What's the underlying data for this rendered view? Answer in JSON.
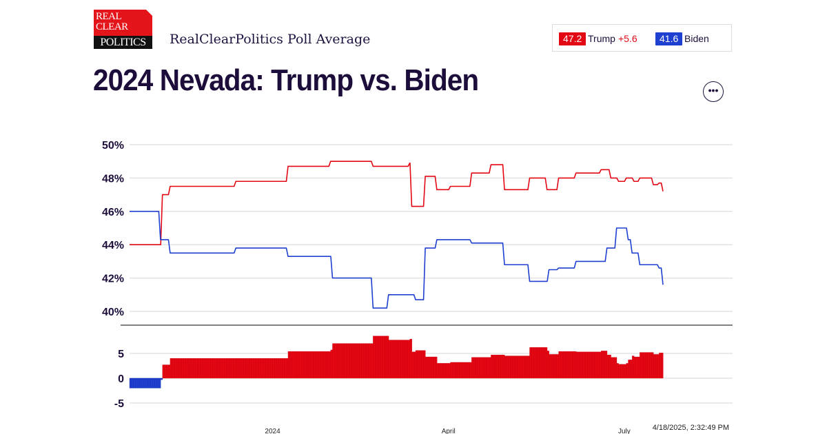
{
  "header": {
    "logo_lines": [
      "REAL",
      "CLEAR",
      "POLITICS"
    ],
    "subtitle": "RealClearPolitics Poll Average",
    "title": "2024 Nevada: Trump vs. Biden",
    "more_icon": "ellipsis-icon"
  },
  "legend": {
    "trump_value": "47.2",
    "trump_label": "Trump",
    "trump_spread": "+5.6",
    "biden_value": "41.6",
    "biden_label": "Biden"
  },
  "timestamp": "4/18/2025, 2:32:49 PM",
  "colors": {
    "trump": "#e30613",
    "biden": "#1e3fd0",
    "text": "#1c0d3a"
  },
  "chart_data": [
    {
      "type": "line",
      "xlim": [
        "2023-10-19",
        "2024-07-21"
      ],
      "ylim": [
        40,
        50
      ],
      "yticks": [
        {
          "v": 50,
          "label": "50%"
        },
        {
          "v": 48,
          "label": "48%"
        },
        {
          "v": 46,
          "label": "46%"
        },
        {
          "v": 44,
          "label": "44%"
        },
        {
          "v": 42,
          "label": "42%"
        },
        {
          "v": 40,
          "label": "40%"
        }
      ],
      "xticks": [
        {
          "d": "2024-01-01",
          "label": "2024"
        },
        {
          "d": "2024-04-01",
          "label": "April"
        },
        {
          "d": "2024-07-01",
          "label": "July"
        }
      ],
      "grid": true,
      "series": [
        {
          "name": "Trump",
          "color": "#e30613",
          "points": [
            [
              "2023-10-19",
              44.0
            ],
            [
              "2023-11-03",
              44.0
            ],
            [
              "2023-11-05",
              47.0
            ],
            [
              "2023-11-09",
              47.5
            ],
            [
              "2023-12-13",
              47.8
            ],
            [
              "2024-01-09",
              48.7
            ],
            [
              "2024-01-31",
              49.0
            ],
            [
              "2024-02-22",
              48.7
            ],
            [
              "2024-03-12",
              48.9
            ],
            [
              "2024-03-13",
              46.3
            ],
            [
              "2024-03-20",
              48.1
            ],
            [
              "2024-03-26",
              47.3
            ],
            [
              "2024-04-02",
              47.5
            ],
            [
              "2024-04-13",
              48.3
            ],
            [
              "2024-04-23",
              48.8
            ],
            [
              "2024-04-30",
              47.3
            ],
            [
              "2024-05-13",
              48.0
            ],
            [
              "2024-05-22",
              47.3
            ],
            [
              "2024-05-28",
              48.0
            ],
            [
              "2024-06-06",
              48.3
            ],
            [
              "2024-06-19",
              48.5
            ],
            [
              "2024-06-24",
              48.0
            ],
            [
              "2024-06-28",
              47.8
            ],
            [
              "2024-07-02",
              48.0
            ],
            [
              "2024-07-06",
              47.8
            ],
            [
              "2024-07-09",
              48.0
            ],
            [
              "2024-07-16",
              47.6
            ],
            [
              "2024-07-19",
              47.7
            ],
            [
              "2024-07-21",
              47.2
            ]
          ]
        },
        {
          "name": "Biden",
          "color": "#1e3fd0",
          "points": [
            [
              "2023-10-19",
              46.0
            ],
            [
              "2023-11-03",
              46.0
            ],
            [
              "2023-11-04",
              44.3
            ],
            [
              "2023-11-09",
              43.5
            ],
            [
              "2023-12-13",
              43.8
            ],
            [
              "2024-01-09",
              43.3
            ],
            [
              "2024-02-01",
              42.0
            ],
            [
              "2024-02-22",
              40.2
            ],
            [
              "2024-03-01",
              41.0
            ],
            [
              "2024-03-15",
              40.7
            ],
            [
              "2024-03-20",
              43.8
            ],
            [
              "2024-03-26",
              44.3
            ],
            [
              "2024-04-13",
              44.1
            ],
            [
              "2024-04-30",
              42.8
            ],
            [
              "2024-05-13",
              41.8
            ],
            [
              "2024-05-23",
              42.5
            ],
            [
              "2024-05-28",
              42.6
            ],
            [
              "2024-06-06",
              43.0
            ],
            [
              "2024-06-22",
              43.8
            ],
            [
              "2024-06-27",
              45.0
            ],
            [
              "2024-07-03",
              44.3
            ],
            [
              "2024-07-05",
              43.5
            ],
            [
              "2024-07-09",
              42.8
            ],
            [
              "2024-07-19",
              42.6
            ],
            [
              "2024-07-21",
              41.6
            ]
          ]
        }
      ]
    },
    {
      "type": "bar",
      "description_of_values": "Trump minus Biden spread, daily",
      "ylim": [
        -7,
        10
      ],
      "yticks": [
        {
          "v": 5,
          "label": "5"
        },
        {
          "v": 0,
          "label": "0"
        },
        {
          "v": -5,
          "label": "-5"
        }
      ],
      "positive_color": "#e30613",
      "negative_color": "#1e3fd0"
    }
  ]
}
